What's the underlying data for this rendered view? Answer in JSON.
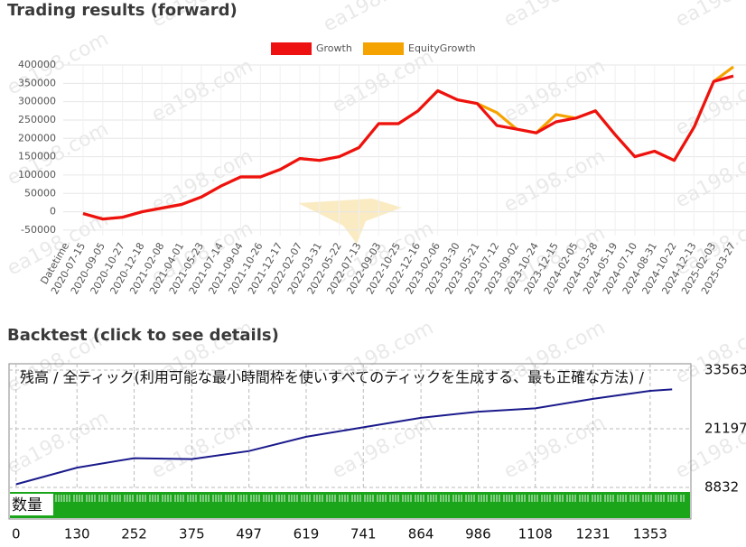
{
  "watermark": "ea198.com",
  "chart_data": [
    {
      "type": "line",
      "title": "Trading results (forward)",
      "x_label": "Datetime",
      "categories": [
        "2020-07-15",
        "2020-09-05",
        "2020-10-27",
        "2020-12-18",
        "2021-02-08",
        "2021-04-01",
        "2021-05-23",
        "2021-07-14",
        "2021-09-04",
        "2021-10-26",
        "2021-12-17",
        "2022-02-07",
        "2022-03-31",
        "2022-05-22",
        "2022-07-13",
        "2022-09-03",
        "2022-10-25",
        "2022-12-16",
        "2023-02-06",
        "2023-03-30",
        "2023-05-21",
        "2023-07-12",
        "2023-09-02",
        "2023-10-24",
        "2023-12-15",
        "2024-02-05",
        "2024-03-28",
        "2024-05-19",
        "2024-07-10",
        "2024-08-31",
        "2024-10-22",
        "2024-12-13",
        "2025-02-03",
        "2025-03-27"
      ],
      "series": [
        {
          "name": "Growth",
          "color": "#ee1111",
          "values": [
            -5000,
            -20000,
            -15000,
            0,
            10000,
            20000,
            40000,
            70000,
            95000,
            95000,
            115000,
            145000,
            140000,
            150000,
            175000,
            240000,
            240000,
            275000,
            330000,
            305000,
            295000,
            235000,
            225000,
            215000,
            245000,
            255000,
            275000,
            210000,
            150000,
            165000,
            140000,
            230000,
            355000,
            370000
          ]
        },
        {
          "name": "EquityGrowth",
          "color": "#f5a300",
          "values": [
            -5000,
            -20000,
            -15000,
            0,
            10000,
            20000,
            40000,
            70000,
            95000,
            95000,
            115000,
            145000,
            140000,
            150000,
            175000,
            240000,
            240000,
            275000,
            330000,
            305000,
            295000,
            270000,
            225000,
            215000,
            265000,
            255000,
            275000,
            210000,
            150000,
            165000,
            140000,
            230000,
            355000,
            395000
          ]
        }
      ],
      "ylim": [
        -65000,
        400000
      ],
      "yticks": [
        -50000,
        0,
        50000,
        100000,
        150000,
        200000,
        250000,
        300000,
        350000,
        400000
      ],
      "grid": true
    },
    {
      "type": "line",
      "title": "Backtest (click to see details)",
      "annotation": "残高 / 全ティック(利用可能な最小時間枠を使いすべてのティックを生成する、最も正確な方法) /",
      "volume_label": "数量",
      "x": [
        0,
        130,
        252,
        375,
        497,
        619,
        741,
        864,
        986,
        1108,
        1231,
        1353,
        1400
      ],
      "series": [
        {
          "name": "残高",
          "color": "#1a1a8c",
          "values": [
            9500,
            13000,
            15000,
            14800,
            16500,
            19500,
            21500,
            23500,
            24800,
            25500,
            27500,
            29200,
            29500
          ]
        }
      ],
      "xlim": [
        -15,
        1440
      ],
      "xticks": [
        0,
        130,
        252,
        375,
        497,
        619,
        741,
        864,
        986,
        1108,
        1231,
        1353
      ],
      "ylim": [
        8260,
        34900
      ],
      "yticks": [
        8832,
        21197,
        33563
      ],
      "grid": true
    }
  ]
}
